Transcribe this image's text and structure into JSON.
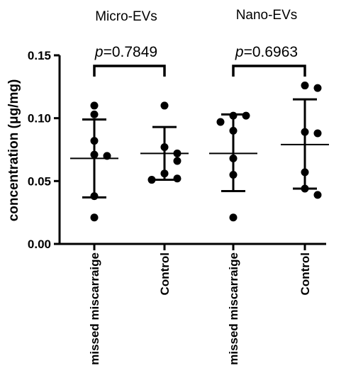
{
  "chart_data": {
    "type": "scatter",
    "ylabel": "concentration (μg/mg)",
    "ylim": [
      0,
      0.15
    ],
    "yticks": [
      "0.00",
      "0.05",
      "0.10",
      "0.15"
    ],
    "groups": [
      "Micro-EVs",
      "Nano-EVs"
    ],
    "categories": [
      "missed miscarraige",
      "Control",
      "missed miscarraige",
      "Control"
    ],
    "series": [
      {
        "group": "Micro-EVs",
        "category": "missed miscarraige",
        "points": [
          0.11,
          0.103,
          0.082,
          0.071,
          0.07,
          0.038,
          0.021
        ],
        "mean": 0.068,
        "sd_low": 0.037,
        "sd_high": 0.099
      },
      {
        "group": "Micro-EVs",
        "category": "Control",
        "points": [
          0.11,
          0.077,
          0.072,
          0.066,
          0.056,
          0.052,
          0.051
        ],
        "mean": 0.072,
        "sd_low": 0.051,
        "sd_high": 0.093
      },
      {
        "group": "Nano-EVs",
        "category": "missed miscarraige",
        "points": [
          0.102,
          0.102,
          0.097,
          0.09,
          0.068,
          0.055,
          0.021
        ],
        "mean": 0.072,
        "sd_low": 0.042,
        "sd_high": 0.103
      },
      {
        "group": "Nano-EVs",
        "category": "Control",
        "points": [
          0.126,
          0.124,
          0.089,
          0.088,
          0.057,
          0.044,
          0.039
        ],
        "mean": 0.079,
        "sd_low": 0.044,
        "sd_high": 0.115
      }
    ],
    "comparisons": [
      {
        "group": "Micro-EVs",
        "p_prefix": "p",
        "p_value": "=0.7849"
      },
      {
        "group": "Nano-EVs",
        "p_prefix": "p",
        "p_value": "=0.6963"
      }
    ]
  }
}
